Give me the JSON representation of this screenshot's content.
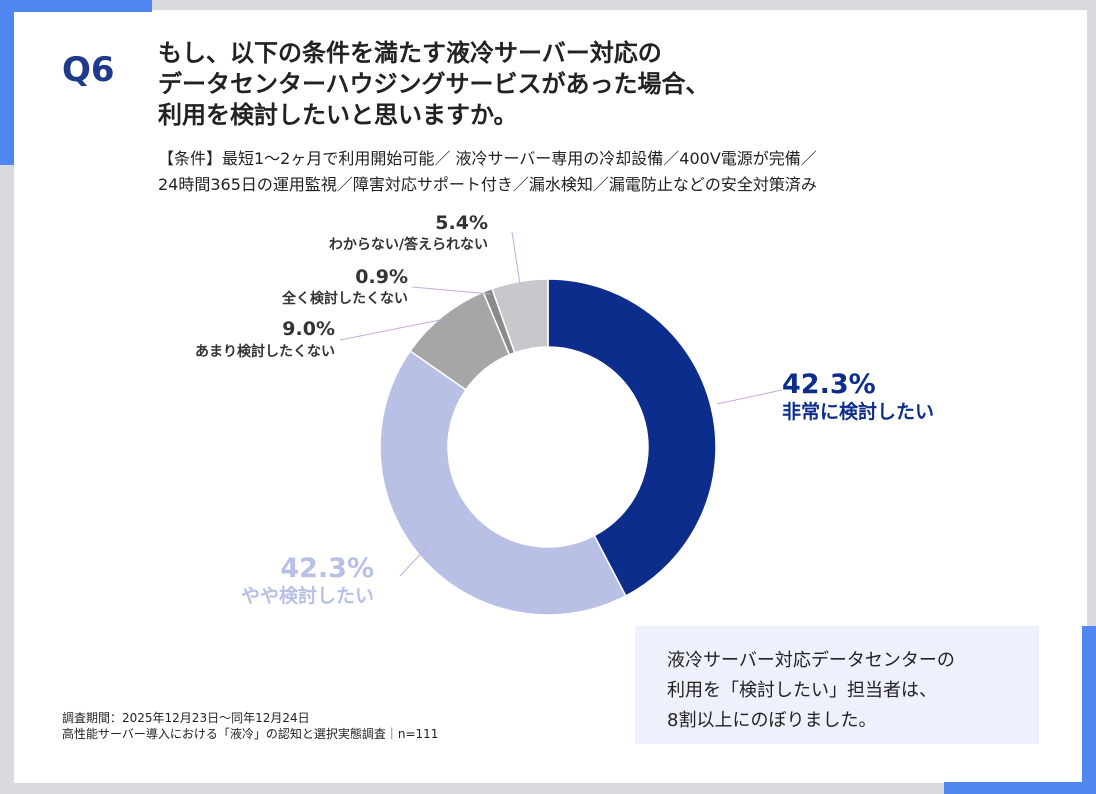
{
  "question": {
    "number": "Q6",
    "title_lines": [
      "もし、以下の条件を満たす液冷サーバー対応の",
      "データセンターハウジングサービスがあった場合、",
      "利用を検討したいと思いますか。"
    ],
    "conditions_lines": [
      "【条件】最短1〜2ヶ月で利用開始可能／ 液冷サーバー専用の冷却設備／400V電源が完備／",
      "24時間365日の運用監視／障害対応サポート付き／漏水検知／漏電防止などの安全対策済み"
    ]
  },
  "chart_data": {
    "type": "pie",
    "donut": true,
    "categories": [
      "非常に検討したい",
      "やや検討したい",
      "あまり検討したくない",
      "全く検討したくない",
      "わからない/答えられない"
    ],
    "values": [
      42.3,
      42.3,
      9.0,
      0.9,
      5.4
    ],
    "value_labels": [
      "42.3%",
      "42.3%",
      "9.0%",
      "0.9%",
      "5.4%"
    ],
    "colors": [
      "#0d2d8c",
      "#b9c0e6",
      "#a6a6a6",
      "#8a8a8a",
      "#c8c8cc"
    ],
    "label_colors": [
      "#0d2d8c",
      "#b9c0e6",
      "#333333",
      "#333333",
      "#333333"
    ],
    "start_angle_deg": 0,
    "direction": "clockwise"
  },
  "callout": {
    "lines": [
      "液冷サーバー対応データセンターの",
      "利用を「検討したい」担当者は、",
      "8割以上にのぼりました。"
    ]
  },
  "footer": {
    "lines": [
      "調査期間：2025年12月23日〜同年12月24日",
      "高性能サーバー導入における「液冷」の認知と選択実態調査｜n=111"
    ]
  }
}
